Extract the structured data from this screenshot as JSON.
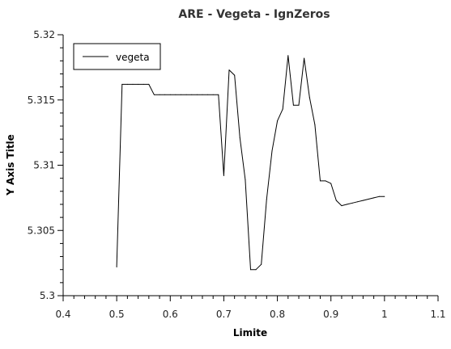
{
  "chart_data": {
    "type": "line",
    "title": "ARE - Vegeta - IgnZeros",
    "xlabel": "Limite",
    "ylabel": "Y Axis Title",
    "xlim": [
      0.4,
      1.1
    ],
    "ylim": [
      5.3,
      5.32
    ],
    "xticks": [
      0.4,
      0.5,
      0.6,
      0.7,
      0.8,
      0.9,
      1.0,
      1.1
    ],
    "xtick_labels": [
      "0.4",
      "0.5",
      "0.6",
      "0.7",
      "0.8",
      "0.9",
      "1",
      "1.1"
    ],
    "yticks": [
      5.3,
      5.305,
      5.31,
      5.315,
      5.32
    ],
    "ytick_labels": [
      "5.3",
      "5.305",
      "5.31",
      "5.315",
      "5.32"
    ],
    "grid": false,
    "legend_position": "top-left",
    "series": [
      {
        "name": "vegeta",
        "color": "#000000",
        "x": [
          0.5,
          0.51,
          0.52,
          0.53,
          0.54,
          0.55,
          0.56,
          0.57,
          0.58,
          0.59,
          0.6,
          0.61,
          0.62,
          0.63,
          0.64,
          0.65,
          0.66,
          0.67,
          0.68,
          0.69,
          0.7,
          0.71,
          0.72,
          0.73,
          0.74,
          0.75,
          0.76,
          0.77,
          0.78,
          0.79,
          0.8,
          0.81,
          0.82,
          0.83,
          0.84,
          0.85,
          0.86,
          0.87,
          0.88,
          0.89,
          0.9,
          0.91,
          0.92,
          0.93,
          0.94,
          0.95,
          0.96,
          0.97,
          0.98,
          0.99,
          1.0
        ],
        "y": [
          5.3022,
          5.3162,
          5.3162,
          5.3162,
          5.3162,
          5.3162,
          5.3162,
          5.3154,
          5.3154,
          5.3154,
          5.3154,
          5.3154,
          5.3154,
          5.3154,
          5.3154,
          5.3154,
          5.3154,
          5.3154,
          5.3154,
          5.3154,
          5.3092,
          5.3173,
          5.3169,
          5.3121,
          5.3089,
          5.302,
          5.302,
          5.3024,
          5.3074,
          5.3111,
          5.3134,
          5.3143,
          5.3184,
          5.3146,
          5.3146,
          5.3182,
          5.3152,
          5.3131,
          5.3088,
          5.3088,
          5.3086,
          5.3073,
          5.3069,
          5.307,
          5.3071,
          5.3072,
          5.3073,
          5.3074,
          5.3075,
          5.3076,
          5.3076
        ]
      }
    ]
  }
}
